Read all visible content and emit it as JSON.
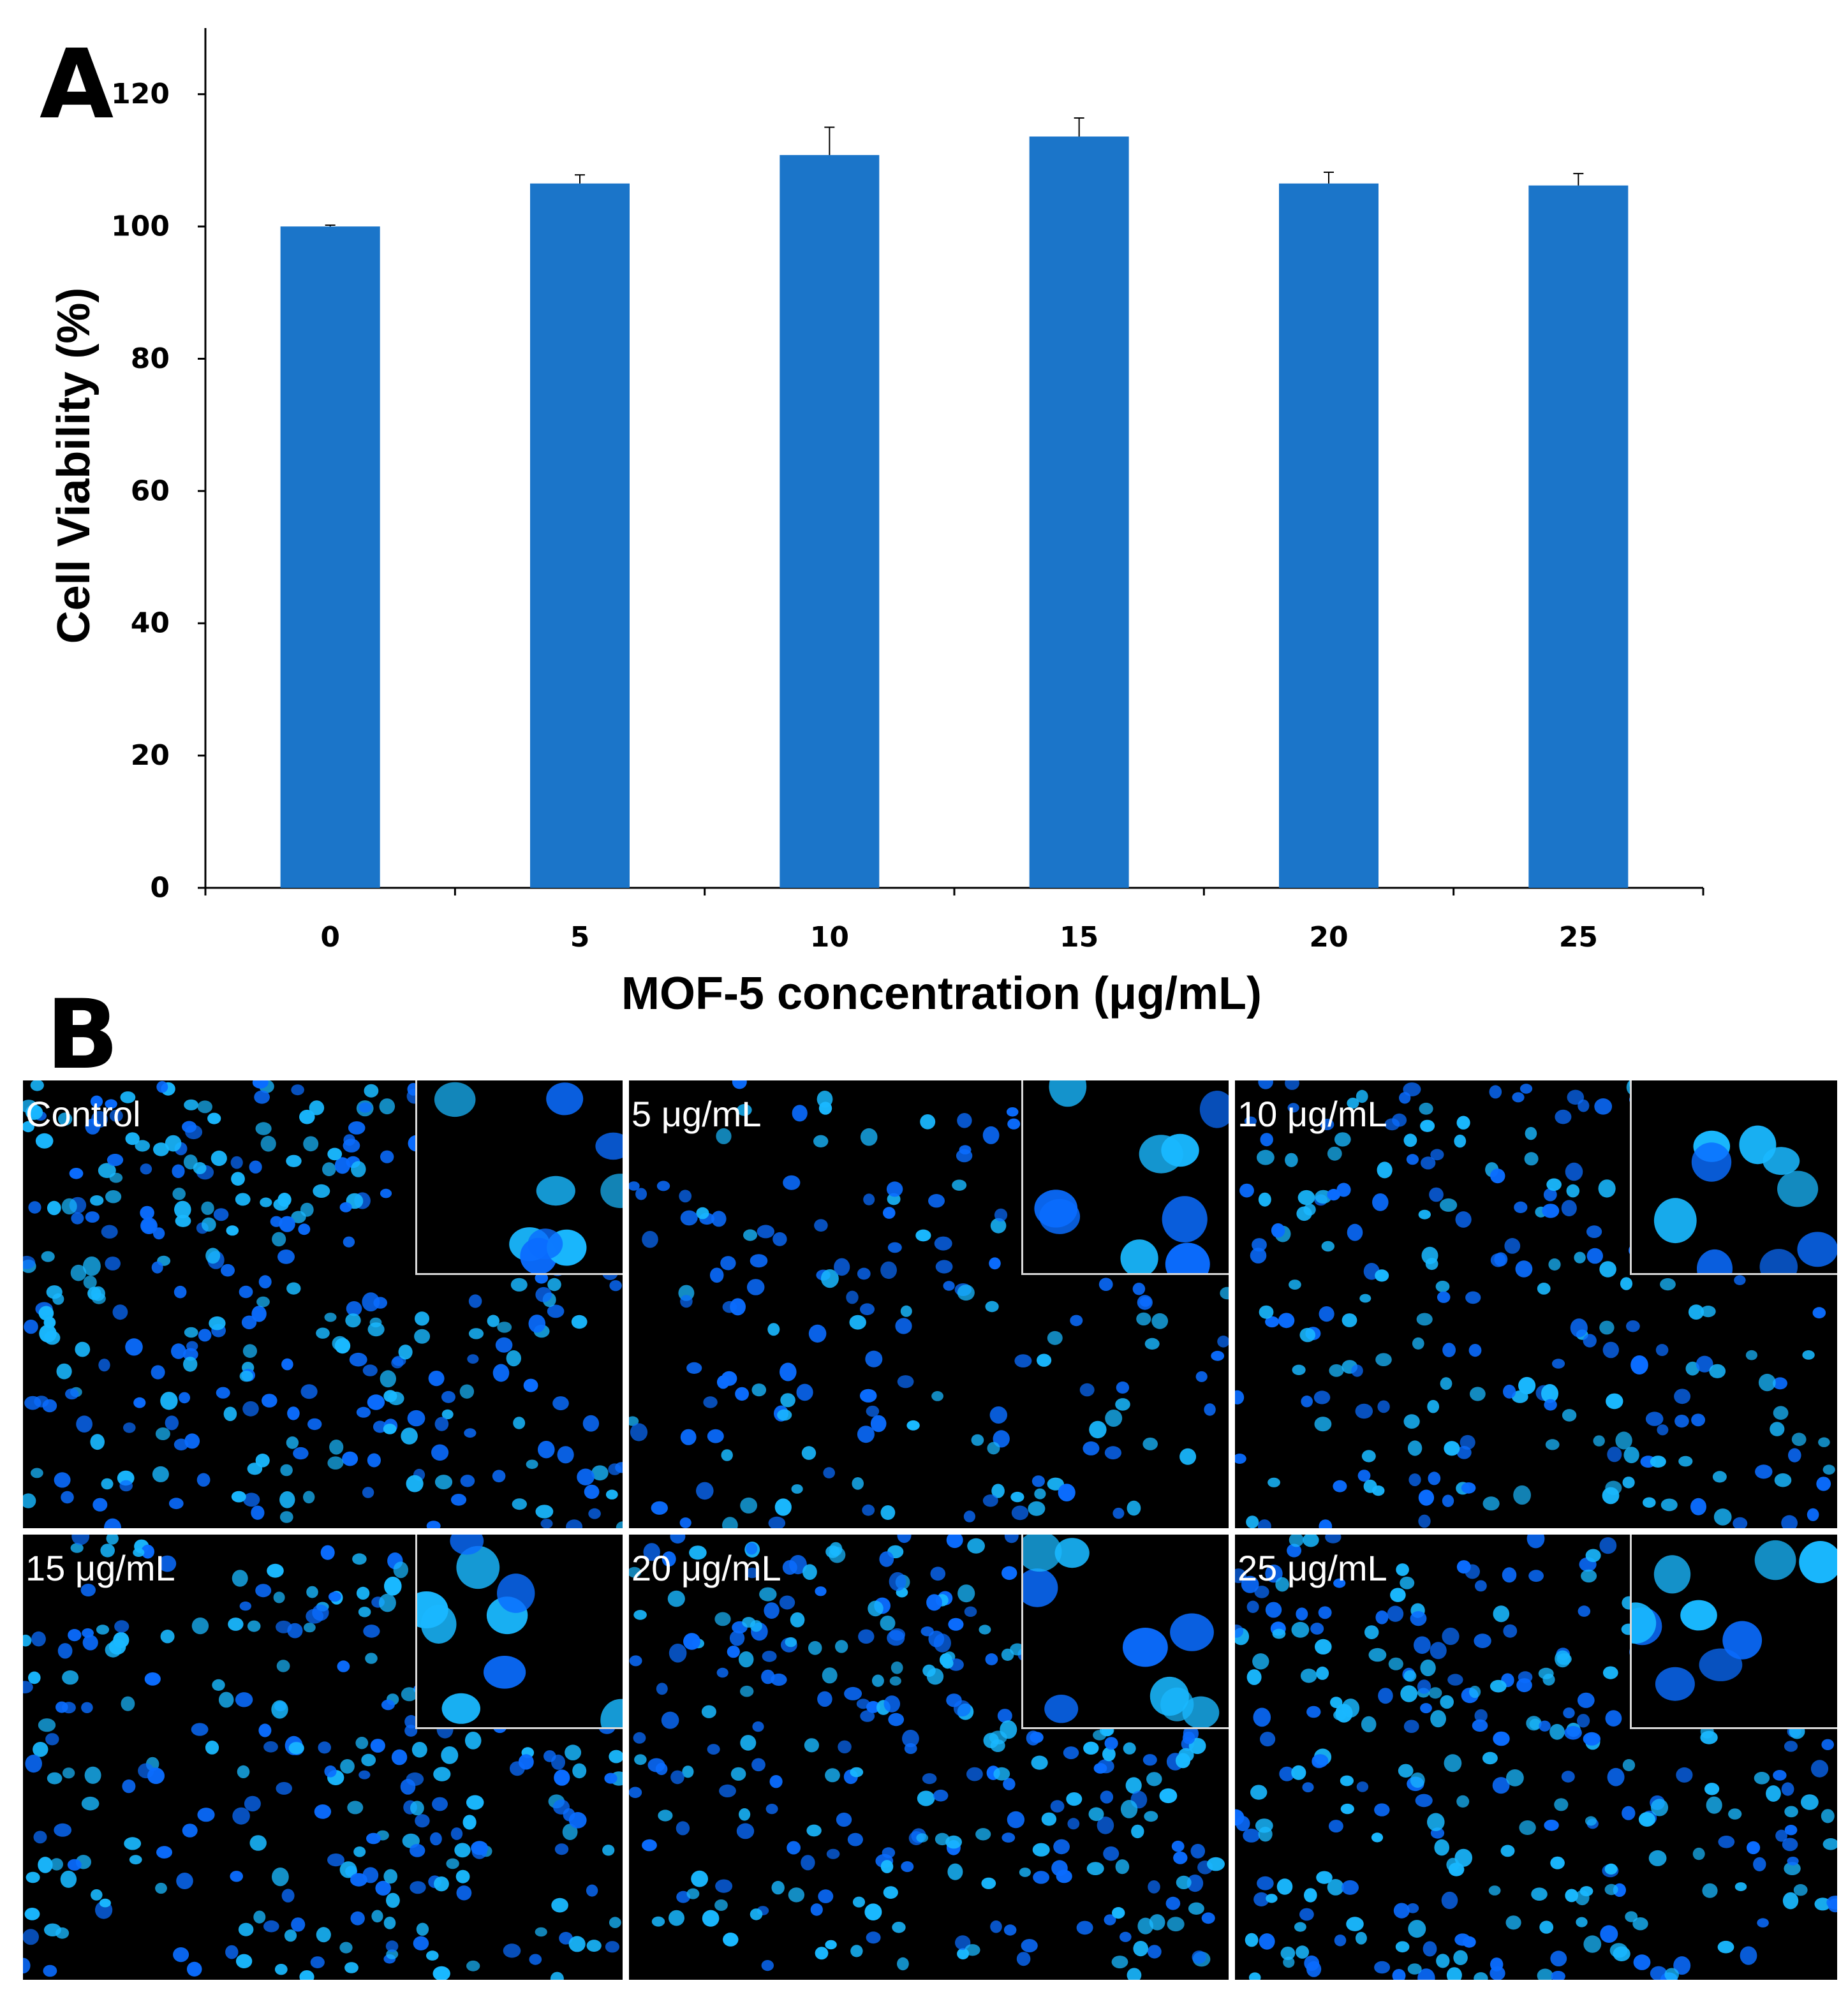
{
  "panel_a": {
    "letter": "A"
  },
  "panel_b": {
    "letter": "B",
    "tiles": [
      {
        "label": "Control"
      },
      {
        "label": "5 μg/mL"
      },
      {
        "label": "10 μg/mL"
      },
      {
        "label": "15 μg/mL"
      },
      {
        "label": "20 μg/mL"
      },
      {
        "label": "25 μg/mL"
      }
    ]
  },
  "colors": {
    "bar": "#1b75c9",
    "nucleus": "#0a6cff",
    "nucleus_bright": "#19b8ff",
    "background": "#000000"
  },
  "chart_data": {
    "type": "bar",
    "title": "",
    "xlabel": "MOF-5 concentration (μg/mL)",
    "ylabel": "Cell Viability (%)",
    "categories": [
      "0",
      "5",
      "10",
      "15",
      "20",
      "25"
    ],
    "values": [
      100,
      106.5,
      110.8,
      113.6,
      106.5,
      106.2
    ],
    "errors": [
      0.2,
      1.3,
      4.2,
      2.8,
      1.7,
      1.8
    ],
    "ylim": [
      0,
      130
    ],
    "yticks": [
      "0",
      "20",
      "40",
      "60",
      "80",
      "100",
      "120"
    ],
    "grid": false
  }
}
